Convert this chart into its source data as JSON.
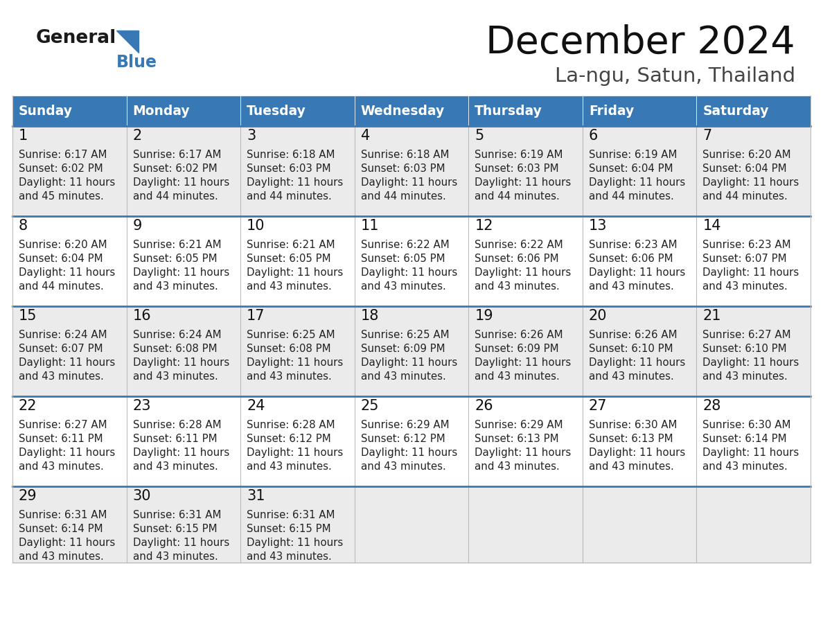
{
  "title": "December 2024",
  "subtitle": "La-ngu, Satun, Thailand",
  "days_of_week": [
    "Sunday",
    "Monday",
    "Tuesday",
    "Wednesday",
    "Thursday",
    "Friday",
    "Saturday"
  ],
  "header_bg": "#3878B4",
  "header_text": "#FFFFFF",
  "cell_text_color": "#222222",
  "day_num_color": "#111111",
  "border_color": "#BBBBBB",
  "row_sep_color": "#3878B4",
  "title_color": "#111111",
  "subtitle_color": "#444444",
  "row_bgs": [
    "#EBEBEB",
    "#FFFFFF",
    "#EBEBEB",
    "#FFFFFF",
    "#EBEBEB"
  ],
  "calendar_data": [
    [
      {
        "day": "1",
        "sunrise": "6:17 AM",
        "sunset": "6:02 PM",
        "daylight_h": "11 hours",
        "daylight_m": "and 45 minutes."
      },
      {
        "day": "2",
        "sunrise": "6:17 AM",
        "sunset": "6:02 PM",
        "daylight_h": "11 hours",
        "daylight_m": "and 44 minutes."
      },
      {
        "day": "3",
        "sunrise": "6:18 AM",
        "sunset": "6:03 PM",
        "daylight_h": "11 hours",
        "daylight_m": "and 44 minutes."
      },
      {
        "day": "4",
        "sunrise": "6:18 AM",
        "sunset": "6:03 PM",
        "daylight_h": "11 hours",
        "daylight_m": "and 44 minutes."
      },
      {
        "day": "5",
        "sunrise": "6:19 AM",
        "sunset": "6:03 PM",
        "daylight_h": "11 hours",
        "daylight_m": "and 44 minutes."
      },
      {
        "day": "6",
        "sunrise": "6:19 AM",
        "sunset": "6:04 PM",
        "daylight_h": "11 hours",
        "daylight_m": "and 44 minutes."
      },
      {
        "day": "7",
        "sunrise": "6:20 AM",
        "sunset": "6:04 PM",
        "daylight_h": "11 hours",
        "daylight_m": "and 44 minutes."
      }
    ],
    [
      {
        "day": "8",
        "sunrise": "6:20 AM",
        "sunset": "6:04 PM",
        "daylight_h": "11 hours",
        "daylight_m": "and 44 minutes."
      },
      {
        "day": "9",
        "sunrise": "6:21 AM",
        "sunset": "6:05 PM",
        "daylight_h": "11 hours",
        "daylight_m": "and 43 minutes."
      },
      {
        "day": "10",
        "sunrise": "6:21 AM",
        "sunset": "6:05 PM",
        "daylight_h": "11 hours",
        "daylight_m": "and 43 minutes."
      },
      {
        "day": "11",
        "sunrise": "6:22 AM",
        "sunset": "6:05 PM",
        "daylight_h": "11 hours",
        "daylight_m": "and 43 minutes."
      },
      {
        "day": "12",
        "sunrise": "6:22 AM",
        "sunset": "6:06 PM",
        "daylight_h": "11 hours",
        "daylight_m": "and 43 minutes."
      },
      {
        "day": "13",
        "sunrise": "6:23 AM",
        "sunset": "6:06 PM",
        "daylight_h": "11 hours",
        "daylight_m": "and 43 minutes."
      },
      {
        "day": "14",
        "sunrise": "6:23 AM",
        "sunset": "6:07 PM",
        "daylight_h": "11 hours",
        "daylight_m": "and 43 minutes."
      }
    ],
    [
      {
        "day": "15",
        "sunrise": "6:24 AM",
        "sunset": "6:07 PM",
        "daylight_h": "11 hours",
        "daylight_m": "and 43 minutes."
      },
      {
        "day": "16",
        "sunrise": "6:24 AM",
        "sunset": "6:08 PM",
        "daylight_h": "11 hours",
        "daylight_m": "and 43 minutes."
      },
      {
        "day": "17",
        "sunrise": "6:25 AM",
        "sunset": "6:08 PM",
        "daylight_h": "11 hours",
        "daylight_m": "and 43 minutes."
      },
      {
        "day": "18",
        "sunrise": "6:25 AM",
        "sunset": "6:09 PM",
        "daylight_h": "11 hours",
        "daylight_m": "and 43 minutes."
      },
      {
        "day": "19",
        "sunrise": "6:26 AM",
        "sunset": "6:09 PM",
        "daylight_h": "11 hours",
        "daylight_m": "and 43 minutes."
      },
      {
        "day": "20",
        "sunrise": "6:26 AM",
        "sunset": "6:10 PM",
        "daylight_h": "11 hours",
        "daylight_m": "and 43 minutes."
      },
      {
        "day": "21",
        "sunrise": "6:27 AM",
        "sunset": "6:10 PM",
        "daylight_h": "11 hours",
        "daylight_m": "and 43 minutes."
      }
    ],
    [
      {
        "day": "22",
        "sunrise": "6:27 AM",
        "sunset": "6:11 PM",
        "daylight_h": "11 hours",
        "daylight_m": "and 43 minutes."
      },
      {
        "day": "23",
        "sunrise": "6:28 AM",
        "sunset": "6:11 PM",
        "daylight_h": "11 hours",
        "daylight_m": "and 43 minutes."
      },
      {
        "day": "24",
        "sunrise": "6:28 AM",
        "sunset": "6:12 PM",
        "daylight_h": "11 hours",
        "daylight_m": "and 43 minutes."
      },
      {
        "day": "25",
        "sunrise": "6:29 AM",
        "sunset": "6:12 PM",
        "daylight_h": "11 hours",
        "daylight_m": "and 43 minutes."
      },
      {
        "day": "26",
        "sunrise": "6:29 AM",
        "sunset": "6:13 PM",
        "daylight_h": "11 hours",
        "daylight_m": "and 43 minutes."
      },
      {
        "day": "27",
        "sunrise": "6:30 AM",
        "sunset": "6:13 PM",
        "daylight_h": "11 hours",
        "daylight_m": "and 43 minutes."
      },
      {
        "day": "28",
        "sunrise": "6:30 AM",
        "sunset": "6:14 PM",
        "daylight_h": "11 hours",
        "daylight_m": "and 43 minutes."
      }
    ],
    [
      {
        "day": "29",
        "sunrise": "6:31 AM",
        "sunset": "6:14 PM",
        "daylight_h": "11 hours",
        "daylight_m": "and 43 minutes."
      },
      {
        "day": "30",
        "sunrise": "6:31 AM",
        "sunset": "6:15 PM",
        "daylight_h": "11 hours",
        "daylight_m": "and 43 minutes."
      },
      {
        "day": "31",
        "sunrise": "6:31 AM",
        "sunset": "6:15 PM",
        "daylight_h": "11 hours",
        "daylight_m": "and 43 minutes."
      },
      null,
      null,
      null,
      null
    ]
  ]
}
